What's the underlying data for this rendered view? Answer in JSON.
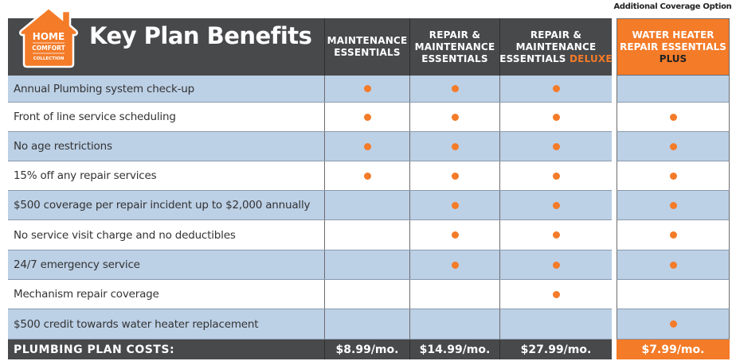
{
  "additional_label": "Additional Coverage Option",
  "logo": {
    "line1": "HOME",
    "line2": "COMFORT",
    "line3": "COLLECTION"
  },
  "title": "Key Plan Benefits",
  "plans": [
    {
      "line1": "",
      "line2": "MAINTENANCE",
      "line3": "ESSENTIALS",
      "highlight": ""
    },
    {
      "line1": "REPAIR &",
      "line2": "MAINTENANCE",
      "line3": "ESSENTIALS",
      "highlight": ""
    },
    {
      "line1": "REPAIR &",
      "line2": "MAINTENANCE",
      "line3": "ESSENTIALS ",
      "highlight": "DELUXE"
    }
  ],
  "extra_plan": {
    "line1": "WATER HEATER",
    "line2": "REPAIR ESSENTIALS",
    "line3": "PLUS"
  },
  "benefits": [
    {
      "label": "Annual Plumbing system check-up",
      "included": [
        true,
        true,
        true,
        false
      ]
    },
    {
      "label": "Front of line service scheduling",
      "included": [
        true,
        true,
        true,
        true
      ]
    },
    {
      "label": "No age restrictions",
      "included": [
        true,
        true,
        true,
        true
      ]
    },
    {
      "label": "15% off any repair services",
      "included": [
        true,
        true,
        true,
        true
      ]
    },
    {
      "label": "$500 coverage per repair incident up to $2,000 annually",
      "included": [
        false,
        true,
        true,
        true
      ]
    },
    {
      "label": "No service visit charge and no deductibles",
      "included": [
        false,
        true,
        true,
        true
      ]
    },
    {
      "label": "24/7 emergency service",
      "included": [
        false,
        true,
        true,
        true
      ]
    },
    {
      "label": "Mechanism repair coverage",
      "included": [
        false,
        false,
        true,
        false
      ]
    },
    {
      "label": "$500 credit towards water heater replacement",
      "included": [
        false,
        false,
        false,
        true
      ]
    }
  ],
  "costs": {
    "label": "PLUMBING PLAN COSTS:",
    "values": [
      "$8.99/mo.",
      "$14.99/mo.",
      "$27.99/mo.",
      "$7.99/mo."
    ]
  },
  "colors": {
    "orange": "#f47b28",
    "header": "#48494b",
    "row_blue": "#bcd0e6"
  }
}
